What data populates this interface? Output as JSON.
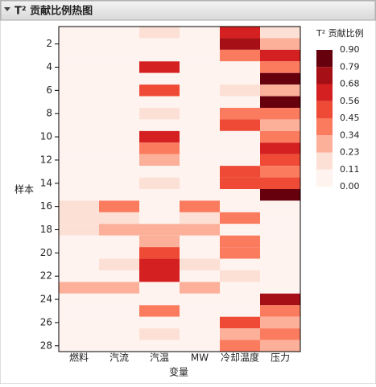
{
  "chart_data": {
    "type": "heatmap",
    "title": "T² 贡献比例热图",
    "x_label": "变量",
    "y_label": "样本",
    "categories": [
      "燃料",
      "汽流",
      "汽温",
      "MW",
      "冷却温度",
      "压力"
    ],
    "y": [
      1,
      2,
      3,
      4,
      5,
      6,
      7,
      8,
      9,
      10,
      11,
      12,
      13,
      14,
      15,
      16,
      17,
      18,
      19,
      20,
      21,
      22,
      23,
      24,
      25,
      26,
      27,
      28
    ],
    "ylim": [
      0.5,
      28.5
    ],
    "yticks": [
      2,
      4,
      6,
      8,
      10,
      12,
      14,
      16,
      18,
      20,
      22,
      24,
      26,
      28
    ],
    "values": [
      [
        0.05,
        0.05,
        0.15,
        0.05,
        0.6,
        0.15
      ],
      [
        0.05,
        0.05,
        0.05,
        0.05,
        0.75,
        0.25
      ],
      [
        0.05,
        0.05,
        0.05,
        0.05,
        0.4,
        0.6
      ],
      [
        0.05,
        0.05,
        0.6,
        0.05,
        0.05,
        0.4
      ],
      [
        0.05,
        0.05,
        0.05,
        0.05,
        0.05,
        0.85
      ],
      [
        0.05,
        0.05,
        0.5,
        0.05,
        0.15,
        0.3
      ],
      [
        0.05,
        0.05,
        0.05,
        0.05,
        0.05,
        0.85
      ],
      [
        0.05,
        0.05,
        0.15,
        0.05,
        0.4,
        0.35
      ],
      [
        0.05,
        0.05,
        0.05,
        0.05,
        0.5,
        0.28
      ],
      [
        0.05,
        0.05,
        0.6,
        0.05,
        0.05,
        0.4
      ],
      [
        0.05,
        0.05,
        0.4,
        0.05,
        0.05,
        0.6
      ],
      [
        0.05,
        0.05,
        0.28,
        0.05,
        0.05,
        0.5
      ],
      [
        0.05,
        0.05,
        0.05,
        0.05,
        0.5,
        0.4
      ],
      [
        0.05,
        0.05,
        0.15,
        0.05,
        0.5,
        0.5
      ],
      [
        0.05,
        0.05,
        0.05,
        0.05,
        0.05,
        0.85
      ],
      [
        0.15,
        0.4,
        0.05,
        0.4,
        0.05,
        0.05
      ],
      [
        0.15,
        0.15,
        0.05,
        0.15,
        0.4,
        0.05
      ],
      [
        0.15,
        0.28,
        0.28,
        0.28,
        0.05,
        0.05
      ],
      [
        0.05,
        0.05,
        0.28,
        0.05,
        0.4,
        0.05
      ],
      [
        0.05,
        0.05,
        0.5,
        0.05,
        0.4,
        0.05
      ],
      [
        0.05,
        0.15,
        0.6,
        0.15,
        0.05,
        0.05
      ],
      [
        0.05,
        0.05,
        0.6,
        0.05,
        0.15,
        0.05
      ],
      [
        0.28,
        0.28,
        0.05,
        0.28,
        0.05,
        0.05
      ],
      [
        0.05,
        0.05,
        0.05,
        0.05,
        0.05,
        0.75
      ],
      [
        0.05,
        0.05,
        0.4,
        0.05,
        0.05,
        0.4
      ],
      [
        0.05,
        0.05,
        0.05,
        0.05,
        0.5,
        0.28
      ],
      [
        0.05,
        0.05,
        0.15,
        0.05,
        0.28,
        0.4
      ],
      [
        0.05,
        0.05,
        0.05,
        0.05,
        0.4,
        0.28
      ]
    ],
    "legend_title": "T² 贡献比例",
    "color_ticks": [
      {
        "value": 0.9,
        "label": "0.90"
      },
      0.79,
      0.68,
      0.56,
      0.45,
      0.34,
      0.23,
      0.11,
      {
        "value": 0,
        "label": "0.00"
      }
    ],
    "colors": [
      "#67000d",
      "#a50f15",
      "#d42020",
      "#ef4a35",
      "#fb7b5f",
      "#fcb09a",
      "#fde0d5",
      "#fef3ef"
    ]
  }
}
